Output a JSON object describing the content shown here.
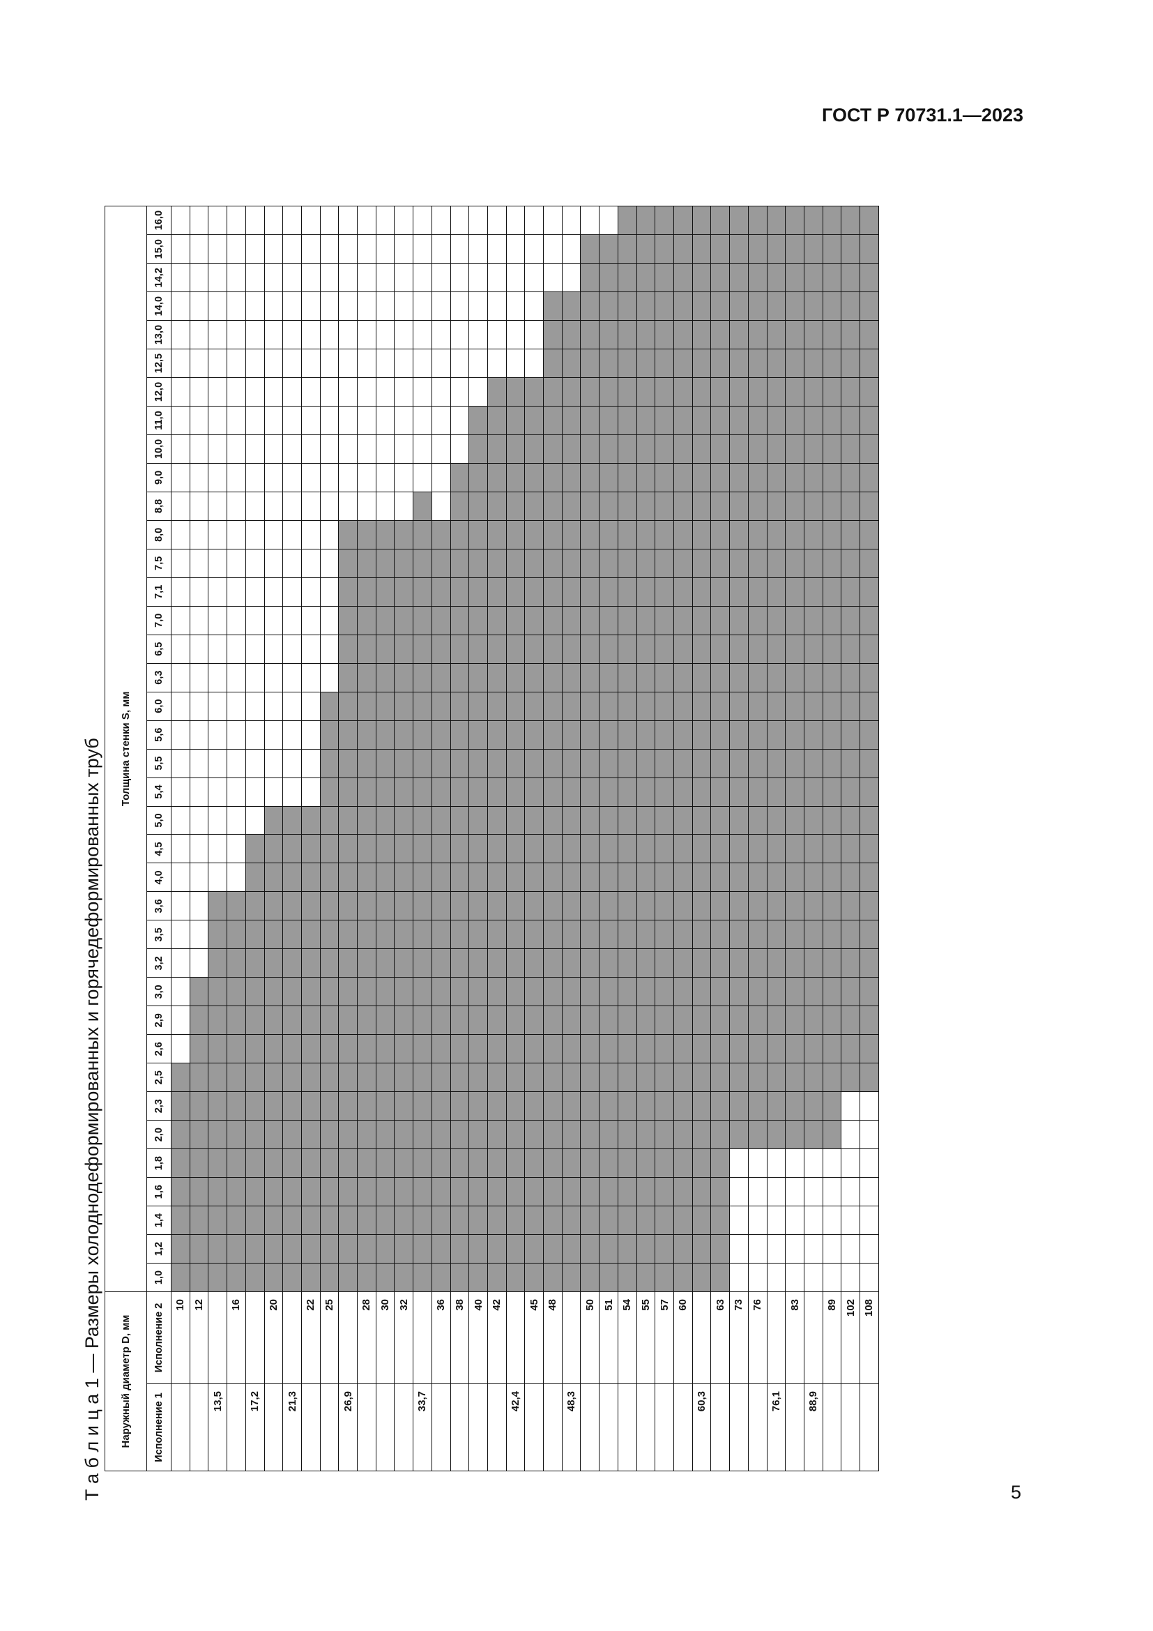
{
  "header": {
    "title": "ГОСТ Р 70731.1—2023"
  },
  "page_number": "5",
  "caption": "Т а б л и ц а  1 — Размеры холоднодеформированных и горячедеформированных труб",
  "table": {
    "diameter_header": "Наружный диаметр D, мм",
    "thickness_header": "Толщина стенки S, мм",
    "version_headers": [
      "Исполнение 1",
      "Исполнение 2"
    ],
    "thickness": [
      "1,0",
      "1,2",
      "1,4",
      "1,6",
      "1,8",
      "2,0",
      "2,3",
      "2,5",
      "2,6",
      "2,9",
      "3,0",
      "3,2",
      "3,5",
      "3,6",
      "4,0",
      "4,5",
      "5,0",
      "5,4",
      "5,5",
      "5,6",
      "6,0",
      "6,3",
      "6,5",
      "7,0",
      "7,1",
      "7,5",
      "8,0",
      "8,8",
      "9,0",
      "10,0",
      "11,0",
      "12,0",
      "12,5",
      "13,0",
      "14,0",
      "14,2",
      "15,0",
      "16,0"
    ],
    "rows": [
      {
        "d1": null,
        "d2": "10",
        "shaded": [
          "1,0",
          "2,5"
        ]
      },
      {
        "d1": null,
        "d2": "12",
        "shaded": [
          "1,0",
          "3,0"
        ]
      },
      {
        "d1": "13,5",
        "d2": null,
        "shaded": [
          "1,0",
          "3,6"
        ]
      },
      {
        "d1": null,
        "d2": "16",
        "shaded": [
          "1,0",
          "3,6"
        ]
      },
      {
        "d1": "17,2",
        "d2": null,
        "shaded": [
          "1,0",
          "4,5"
        ]
      },
      {
        "d1": null,
        "d2": "20",
        "shaded": [
          "1,0",
          "5,0"
        ]
      },
      {
        "d1": "21,3",
        "d2": null,
        "shaded": [
          "1,0",
          "5,0"
        ]
      },
      {
        "d1": null,
        "d2": "22",
        "shaded": [
          "1,0",
          "5,0"
        ]
      },
      {
        "d1": null,
        "d2": "25",
        "shaded": [
          "1,0",
          "6,0"
        ]
      },
      {
        "d1": "26,9",
        "d2": null,
        "shaded": [
          "1,0",
          "8,0"
        ]
      },
      {
        "d1": null,
        "d2": "28",
        "shaded": [
          "1,0",
          "8,0"
        ]
      },
      {
        "d1": null,
        "d2": "30",
        "shaded": [
          "1,0",
          "8,0"
        ]
      },
      {
        "d1": null,
        "d2": "32",
        "shaded": [
          "1,0",
          "8,0"
        ]
      },
      {
        "d1": "33,7",
        "d2": null,
        "shaded": [
          "1,0",
          "8,8"
        ]
      },
      {
        "d1": null,
        "d2": "36",
        "shaded": [
          "1,0",
          "8,0"
        ]
      },
      {
        "d1": null,
        "d2": "38",
        "shaded": [
          "1,0",
          "9,0"
        ]
      },
      {
        "d1": null,
        "d2": "40",
        "shaded": [
          "1,0",
          "11,0"
        ]
      },
      {
        "d1": null,
        "d2": "42",
        "shaded": [
          "1,0",
          "12,0"
        ]
      },
      {
        "d1": "42,4",
        "d2": null,
        "shaded": [
          "1,0",
          "12,0"
        ]
      },
      {
        "d1": null,
        "d2": "45",
        "shaded": [
          "1,0",
          "12,0"
        ]
      },
      {
        "d1": null,
        "d2": "48",
        "shaded": [
          "1,0",
          "14,0"
        ]
      },
      {
        "d1": "48,3",
        "d2": null,
        "shaded": [
          "1,0",
          "14,0"
        ]
      },
      {
        "d1": null,
        "d2": "50",
        "shaded": [
          "1,0",
          "15,0"
        ]
      },
      {
        "d1": null,
        "d2": "51",
        "shaded": [
          "1,0",
          "15,0"
        ]
      },
      {
        "d1": null,
        "d2": "54",
        "shaded": [
          "1,0",
          "16,0"
        ]
      },
      {
        "d1": null,
        "d2": "55",
        "shaded": [
          "1,0",
          "16,0"
        ]
      },
      {
        "d1": null,
        "d2": "57",
        "shaded": [
          "1,0",
          "16,0"
        ]
      },
      {
        "d1": null,
        "d2": "60",
        "shaded": [
          "1,0",
          "16,0"
        ]
      },
      {
        "d1": "60,3",
        "d2": null,
        "shaded": [
          "1,0",
          "16,0"
        ]
      },
      {
        "d1": null,
        "d2": "63",
        "shaded": [
          "1,0",
          "16,0"
        ]
      },
      {
        "d1": null,
        "d2": "73",
        "shaded": [
          "2,0",
          "16,0"
        ]
      },
      {
        "d1": null,
        "d2": "76",
        "shaded": [
          "2,0",
          "16,0"
        ]
      },
      {
        "d1": "76,1",
        "d2": null,
        "shaded": [
          "2,0",
          "16,0"
        ]
      },
      {
        "d1": null,
        "d2": "83",
        "shaded": [
          "2,0",
          "16,0"
        ]
      },
      {
        "d1": "88,9",
        "d2": null,
        "shaded": [
          "2,0",
          "16,0"
        ]
      },
      {
        "d1": null,
        "d2": "89",
        "shaded": [
          "2,0",
          "16,0"
        ]
      },
      {
        "d1": null,
        "d2": "102",
        "shaded": [
          "2,5",
          "16,0"
        ]
      },
      {
        "d1": null,
        "d2": "108",
        "shaded": [
          "2,5",
          "16,0"
        ]
      }
    ]
  }
}
